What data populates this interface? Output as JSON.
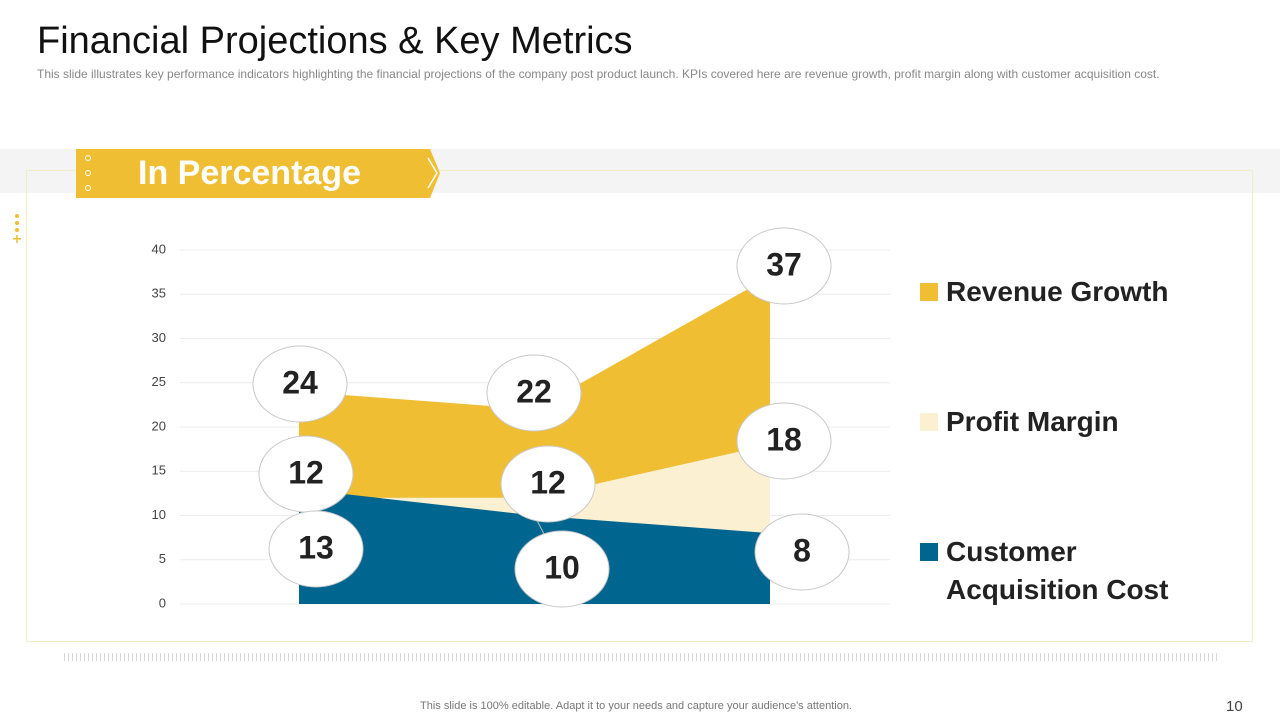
{
  "header": {
    "title": "Financial Projections & Key Metrics",
    "subtitle": "This slide illustrates key performance indicators highlighting the financial projections of the company post product launch. KPIs covered here are revenue growth, profit margin along with customer acquisition cost."
  },
  "banner": "In Percentage",
  "chart_data": {
    "type": "area",
    "categories": [
      null,
      null,
      null
    ],
    "series": [
      {
        "name": "Revenue Growth",
        "color": "#f0be32",
        "values": [
          24,
          22,
          37
        ]
      },
      {
        "name": "Profit Margin",
        "color": "#fbf0d2",
        "values": [
          12,
          12,
          18
        ]
      },
      {
        "name": "Customer Acquisition Cost",
        "color": "#00658f",
        "values": [
          13,
          10,
          8
        ]
      }
    ],
    "ylim": [
      0,
      40
    ],
    "yticks": [
      0,
      5,
      10,
      15,
      20,
      25,
      30,
      35,
      40
    ],
    "grid": true
  },
  "footer": {
    "note": "This slide is 100% editable. Adapt it to your needs and capture your audience's attention.",
    "page": "10"
  }
}
